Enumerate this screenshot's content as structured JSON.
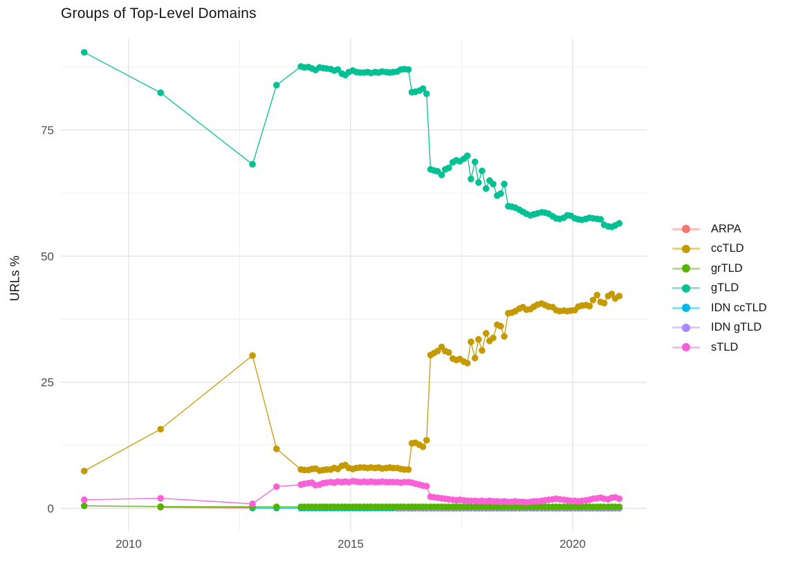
{
  "page": {
    "title": "Groups of Top-Level Domains",
    "y_axis_label": "URLs %"
  },
  "chart_data": {
    "type": "line",
    "title": "Groups of Top-Level Domains",
    "xlabel": "",
    "ylabel": "URLs %",
    "grid": "on",
    "legend_position": "right",
    "xlim": [
      2008.5,
      2021.7
    ],
    "ylim": [
      -4.6,
      93.2
    ],
    "x_ticks": [
      2010,
      2015,
      2020
    ],
    "x_tick_labels": [
      "2010",
      "2015",
      "2020"
    ],
    "y_ticks": [
      0,
      25,
      50,
      75
    ],
    "y_tick_labels": [
      "0",
      "25",
      "50",
      "75"
    ],
    "x_minor_gridlines": [
      2012.5,
      2017.5
    ],
    "y_minor_gridlines": [
      12.5,
      37.5,
      62.5,
      87.5
    ],
    "colors": {
      "grid_major": "#e3e3e3",
      "grid_minor": "#f0f0f0",
      "tick_text": "#4d4d4d",
      "title_text": "#141414"
    },
    "x_dense": [
      2013.88,
      2013.96,
      2014.05,
      2014.13,
      2014.21,
      2014.3,
      2014.38,
      2014.46,
      2014.55,
      2014.63,
      2014.71,
      2014.8,
      2014.88,
      2014.96,
      2015.05,
      2015.13,
      2015.21,
      2015.3,
      2015.38,
      2015.46,
      2015.55,
      2015.63,
      2015.71,
      2015.8,
      2015.88,
      2015.96,
      2016.05,
      2016.13,
      2016.21,
      2016.3,
      2016.38,
      2016.46,
      2016.55,
      2016.63,
      2016.71,
      2016.8,
      2016.88,
      2016.96,
      2017.05,
      2017.13,
      2017.21,
      2017.3,
      2017.38,
      2017.46,
      2017.55,
      2017.63,
      2017.71,
      2017.8,
      2017.88,
      2017.96,
      2018.05,
      2018.13,
      2018.21,
      2018.3,
      2018.38,
      2018.46,
      2018.55,
      2018.63,
      2018.71,
      2018.8,
      2018.88,
      2018.96,
      2019.05,
      2019.13,
      2019.21,
      2019.3,
      2019.38,
      2019.46,
      2019.55,
      2019.63,
      2019.71,
      2019.8,
      2019.88,
      2019.96,
      2020.05,
      2020.13,
      2020.21,
      2020.3,
      2020.38,
      2020.46,
      2020.55,
      2020.63,
      2020.71,
      2020.8,
      2020.88,
      2020.96,
      2021.05
    ],
    "series": [
      {
        "name": "ARPA",
        "color": "#F8766D",
        "early": [
          [
            2010.72,
            0.2
          ],
          [
            2012.79,
            0.1
          ]
        ],
        "values": null
      },
      {
        "name": "ccTLD",
        "color": "#C49A00",
        "early": [
          [
            2009.0,
            7.4
          ],
          [
            2010.72,
            15.7
          ],
          [
            2012.79,
            30.3
          ],
          [
            2013.33,
            11.8
          ]
        ],
        "values": [
          7.7,
          7.6,
          7.6,
          7.8,
          7.9,
          7.5,
          7.6,
          7.7,
          7.7,
          8.0,
          7.8,
          8.4,
          8.6,
          8.0,
          7.8,
          8.0,
          8.1,
          8.1,
          8.0,
          8.1,
          8.0,
          8.1,
          7.9,
          8.0,
          8.1,
          8.0,
          8.0,
          7.8,
          7.7,
          7.7,
          12.9,
          13.0,
          12.6,
          12.2,
          13.5,
          30.4,
          30.8,
          31.2,
          32.0,
          31.2,
          30.9,
          29.7,
          29.4,
          29.6,
          29.1,
          28.8,
          33.0,
          29.8,
          33.5,
          31.3,
          34.7,
          33.2,
          33.8,
          36.4,
          36.1,
          34.1,
          38.7,
          38.8,
          39.1,
          39.6,
          39.9,
          39.4,
          39.5,
          40.0,
          40.4,
          40.6,
          40.3,
          40.0,
          39.9,
          39.3,
          39.1,
          39.2,
          39.1,
          39.2,
          39.3,
          40.0,
          40.2,
          40.3,
          40.1,
          41.3,
          42.3,
          40.9,
          40.7,
          42.1,
          42.5,
          41.6,
          42.1
        ]
      },
      {
        "name": "grTLD",
        "color": "#53B400",
        "early": [
          [
            2009.0,
            0.5
          ],
          [
            2010.72,
            0.35
          ],
          [
            2012.79,
            0.3
          ],
          [
            2013.33,
            0.3
          ]
        ],
        "values": [
          0.3,
          0.3,
          0.3,
          0.3,
          0.3,
          0.3,
          0.3,
          0.3,
          0.3,
          0.3,
          0.3,
          0.3,
          0.3,
          0.3,
          0.3,
          0.3,
          0.3,
          0.3,
          0.3,
          0.3,
          0.3,
          0.3,
          0.3,
          0.3,
          0.3,
          0.3,
          0.3,
          0.3,
          0.3,
          0.3,
          0.3,
          0.3,
          0.3,
          0.3,
          0.3,
          0.3,
          0.3,
          0.3,
          0.3,
          0.3,
          0.3,
          0.3,
          0.3,
          0.3,
          0.3,
          0.3,
          0.3,
          0.3,
          0.3,
          0.3,
          0.3,
          0.3,
          0.3,
          0.3,
          0.3,
          0.3,
          0.3,
          0.3,
          0.3,
          0.3,
          0.3,
          0.3,
          0.3,
          0.3,
          0.3,
          0.3,
          0.3,
          0.3,
          0.3,
          0.3,
          0.3,
          0.3,
          0.3,
          0.3,
          0.3,
          0.3,
          0.3,
          0.3,
          0.3,
          0.3,
          0.3,
          0.3,
          0.3,
          0.3,
          0.3,
          0.3,
          0.3
        ]
      },
      {
        "name": "gTLD",
        "color": "#00C094",
        "early": [
          [
            2009.0,
            90.4
          ],
          [
            2010.72,
            82.4
          ],
          [
            2012.79,
            68.2
          ],
          [
            2013.33,
            83.9
          ]
        ],
        "values": [
          87.6,
          87.4,
          87.5,
          87.2,
          86.9,
          87.4,
          87.3,
          87.2,
          87.1,
          86.8,
          87.0,
          86.2,
          85.9,
          86.5,
          86.8,
          86.5,
          86.4,
          86.4,
          86.5,
          86.3,
          86.5,
          86.4,
          86.6,
          86.5,
          86.4,
          86.5,
          86.6,
          87.0,
          87.1,
          87.0,
          82.5,
          82.6,
          82.8,
          83.2,
          82.2,
          67.2,
          67.0,
          66.8,
          66.1,
          67.2,
          67.5,
          68.6,
          69.0,
          68.8,
          69.3,
          69.9,
          65.3,
          68.7,
          64.6,
          66.9,
          63.4,
          65.0,
          64.3,
          62.0,
          62.4,
          64.3,
          59.9,
          59.8,
          59.6,
          59.2,
          58.8,
          58.4,
          58.1,
          58.3,
          58.5,
          58.7,
          58.6,
          58.4,
          57.9,
          57.5,
          57.4,
          57.6,
          58.1,
          58.0,
          57.5,
          57.3,
          57.2,
          57.4,
          57.6,
          57.5,
          57.4,
          57.3,
          56.2,
          55.9,
          55.8,
          56.1,
          56.5
        ]
      },
      {
        "name": "IDN ccTLD",
        "color": "#00B6EB",
        "early": [
          [
            2012.79,
            0.05
          ],
          [
            2013.33,
            0.05
          ]
        ],
        "values": [
          0.05,
          0.05,
          0.05,
          0.05,
          0.05,
          0.05,
          0.05,
          0.05,
          0.05,
          0.05,
          0.05,
          0.05,
          0.05,
          0.05,
          0.05,
          0.05,
          0.05,
          0.05,
          0.05,
          0.05,
          0.05,
          0.05,
          0.05,
          0.05,
          0.05,
          0.05,
          0.05,
          0.05,
          0.05,
          0.05,
          0.05,
          0.05,
          0.05,
          0.05,
          0.05,
          0.05,
          0.05,
          0.05,
          0.05,
          0.05,
          0.05,
          0.05,
          0.05,
          0.05,
          0.05,
          0.05,
          0.05,
          0.05,
          0.05,
          0.05,
          0.05,
          0.05,
          0.05,
          0.05,
          0.05,
          0.05,
          0.05,
          0.05,
          0.05,
          0.05,
          0.05,
          0.05,
          0.05,
          0.05,
          0.05,
          0.05,
          0.05,
          0.05,
          0.05,
          0.05,
          0.05,
          0.05,
          0.05,
          0.05,
          0.05,
          0.05,
          0.05,
          0.05,
          0.05,
          0.05,
          0.05,
          0.05,
          0.05,
          0.05,
          0.05,
          0.05,
          0.05
        ]
      },
      {
        "name": "IDN gTLD",
        "color": "#A58AFF",
        "early": [],
        "values": [
          null,
          null,
          null,
          null,
          null,
          null,
          null,
          null,
          null,
          null,
          null,
          null,
          null,
          null,
          null,
          null,
          null,
          null,
          null,
          null,
          null,
          null,
          null,
          null,
          null,
          null,
          0,
          0,
          0,
          0,
          0,
          0,
          0,
          0,
          0,
          0,
          0,
          0,
          0,
          0,
          0,
          0,
          0,
          0,
          0,
          0,
          0,
          0,
          0,
          0,
          0,
          0,
          0,
          0,
          0,
          0,
          0,
          0,
          0,
          0,
          0,
          0,
          0,
          0,
          0,
          0,
          0,
          0,
          0,
          0,
          0,
          0,
          0,
          0,
          0,
          0,
          0,
          0,
          0,
          0,
          0,
          0,
          0,
          0,
          0,
          0,
          0
        ]
      },
      {
        "name": "sTLD",
        "color": "#FB61D7",
        "early": [
          [
            2009.0,
            1.7
          ],
          [
            2010.72,
            2.0
          ],
          [
            2012.79,
            0.9
          ],
          [
            2013.33,
            4.3
          ]
        ],
        "values": [
          4.7,
          4.9,
          5.0,
          5.1,
          4.6,
          4.7,
          5.0,
          5.1,
          5.2,
          5.1,
          5.3,
          5.2,
          5.3,
          5.2,
          5.4,
          5.3,
          5.2,
          5.3,
          5.2,
          5.3,
          5.2,
          5.2,
          5.3,
          5.2,
          5.2,
          5.2,
          5.2,
          5.1,
          5.2,
          5.2,
          5.1,
          4.9,
          4.7,
          4.5,
          4.4,
          2.3,
          2.2,
          2.1,
          2.0,
          1.9,
          1.8,
          1.7,
          1.6,
          1.7,
          1.6,
          1.5,
          1.5,
          1.5,
          1.4,
          1.5,
          1.4,
          1.5,
          1.4,
          1.4,
          1.3,
          1.4,
          1.3,
          1.3,
          1.4,
          1.3,
          1.3,
          1.2,
          1.3,
          1.4,
          1.4,
          1.5,
          1.6,
          1.7,
          1.8,
          1.9,
          1.8,
          1.7,
          1.6,
          1.5,
          1.5,
          1.4,
          1.5,
          1.6,
          1.7,
          1.9,
          2.0,
          2.1,
          1.9,
          1.8,
          2.1,
          2.2,
          1.9
        ]
      }
    ]
  }
}
